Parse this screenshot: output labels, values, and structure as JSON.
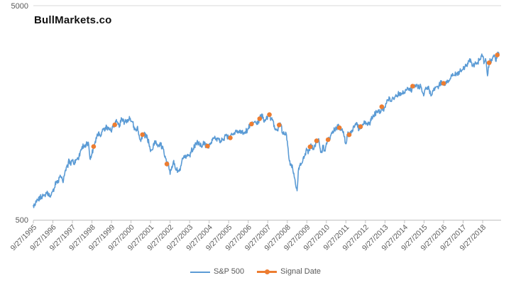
{
  "header": {
    "title": "BullMarkets.co"
  },
  "colors": {
    "sp500_line": "#5B9BD5",
    "signal_marker": "#ED7D31",
    "axis_line": "#BFBFBF",
    "gridline": "#D9D9D9",
    "tick_text": "#595959",
    "title_text": "#111111",
    "background": "#FFFFFF"
  },
  "chart_data": {
    "type": "line",
    "title": "BullMarkets.co",
    "x_axis": {
      "start_month": "1995-09",
      "end_month": "2019-07",
      "tick_interval": "1 year",
      "tick_labels": [
        "9/27/1995",
        "9/27/1996",
        "9/27/1997",
        "9/27/1998",
        "9/27/1999",
        "9/27/2000",
        "9/27/2001",
        "9/27/2002",
        "9/27/2003",
        "9/27/2004",
        "9/27/2005",
        "9/27/2006",
        "9/27/2007",
        "9/27/2008",
        "9/27/2009",
        "9/27/2010",
        "9/27/2011",
        "9/27/2012",
        "9/27/2013",
        "9/27/2014",
        "9/27/2015",
        "9/27/2016",
        "9/27/2017",
        "9/27/2018"
      ]
    },
    "y_axis": {
      "scale": "log",
      "min": 500,
      "max": 5000,
      "tick_labels": [
        "500",
        "5000"
      ]
    },
    "grid": {
      "horizontal_gridlines_at": [
        5000
      ]
    },
    "legend": {
      "position": "bottom",
      "entries": [
        "S&P 500",
        "Signal Date"
      ]
    },
    "series": [
      {
        "name": "S&P 500",
        "type": "line",
        "color": "#5B9BD5",
        "granularity": "monthly",
        "start_month": "1995-09",
        "monthly_values": [
          584,
          582,
          605,
          616,
          636,
          640,
          646,
          654,
          669,
          671,
          640,
          652,
          687,
          705,
          757,
          741,
          786,
          791,
          757,
          801,
          848,
          885,
          954,
          899,
          947,
          915,
          955,
          970,
          980,
          1049,
          1102,
          1112,
          1091,
          1134,
          1121,
          957,
          1017,
          1099,
          1164,
          1229,
          1280,
          1238,
          1286,
          1335,
          1302,
          1373,
          1329,
          1320,
          1283,
          1363,
          1389,
          1469,
          1394,
          1366,
          1499,
          1452,
          1421,
          1455,
          1431,
          1518,
          1437,
          1429,
          1315,
          1320,
          1366,
          1240,
          1160,
          1249,
          1256,
          1224,
          1211,
          1134,
          1041,
          1060,
          1139,
          1148,
          1130,
          1107,
          1147,
          1077,
          1067,
          990,
          911,
          916,
          815,
          886,
          936,
          880,
          856,
          841,
          848,
          917,
          964,
          975,
          990,
          1008,
          996,
          1051,
          1058,
          1112,
          1131,
          1145,
          1126,
          1107,
          1121,
          1141,
          1102,
          1104,
          1115,
          1130,
          1174,
          1212,
          1181,
          1204,
          1181,
          1157,
          1192,
          1191,
          1234,
          1220,
          1229,
          1207,
          1249,
          1248,
          1280,
          1281,
          1295,
          1311,
          1270,
          1270,
          1277,
          1304,
          1336,
          1378,
          1401,
          1418,
          1438,
          1407,
          1421,
          1482,
          1531,
          1503,
          1455,
          1474,
          1527,
          1549,
          1481,
          1468,
          1379,
          1331,
          1323,
          1386,
          1400,
          1280,
          1267,
          1283,
          1166,
          969,
          896,
          903,
          826,
          735,
          683,
          873,
          919,
          919,
          987,
          1021,
          1057,
          1036,
          1096,
          1115,
          1074,
          1104,
          1169,
          1187,
          1089,
          1031,
          1102,
          1049,
          1141,
          1183,
          1181,
          1258,
          1286,
          1327,
          1326,
          1364,
          1345,
          1321,
          1292,
          1219,
          1131,
          1253,
          1247,
          1258,
          1312,
          1366,
          1408,
          1398,
          1310,
          1362,
          1379,
          1407,
          1441,
          1412,
          1416,
          1426,
          1498,
          1515,
          1569,
          1598,
          1631,
          1606,
          1686,
          1633,
          1682,
          1757,
          1806,
          1848,
          1783,
          1859,
          1872,
          1884,
          1924,
          1960,
          1931,
          2003,
          1972,
          2018,
          2068,
          2059,
          1995,
          2105,
          2068,
          2086,
          2107,
          2063,
          2104,
          1972,
          1920,
          2079,
          2080,
          2044,
          1940,
          1932,
          2060,
          2065,
          2097,
          2099,
          2174,
          2171,
          2168,
          2126,
          2199,
          2239,
          2279,
          2364,
          2363,
          2384,
          2412,
          2423,
          2470,
          2472,
          2519,
          2575,
          2648,
          2674,
          2824,
          2714,
          2641,
          2648,
          2705,
          2718,
          2816,
          2902,
          2914,
          2712,
          2760,
          2351,
          2704,
          2784,
          2834,
          2946,
          2752,
          2942,
          2980
        ]
      },
      {
        "name": "Signal Date",
        "type": "scatter",
        "color": "#ED7D31",
        "marker": "circle",
        "signal_months": [
          "1998-10",
          "1999-11",
          "2001-04",
          "2002-07",
          "2004-08",
          "2005-10",
          "2006-11",
          "2007-04",
          "2007-10",
          "2008-04",
          "2009-11",
          "2010-03",
          "2010-10",
          "2011-05",
          "2011-11",
          "2012-06",
          "2013-07",
          "2015-02",
          "2016-09",
          "2019-01",
          "2019-06"
        ]
      }
    ]
  }
}
